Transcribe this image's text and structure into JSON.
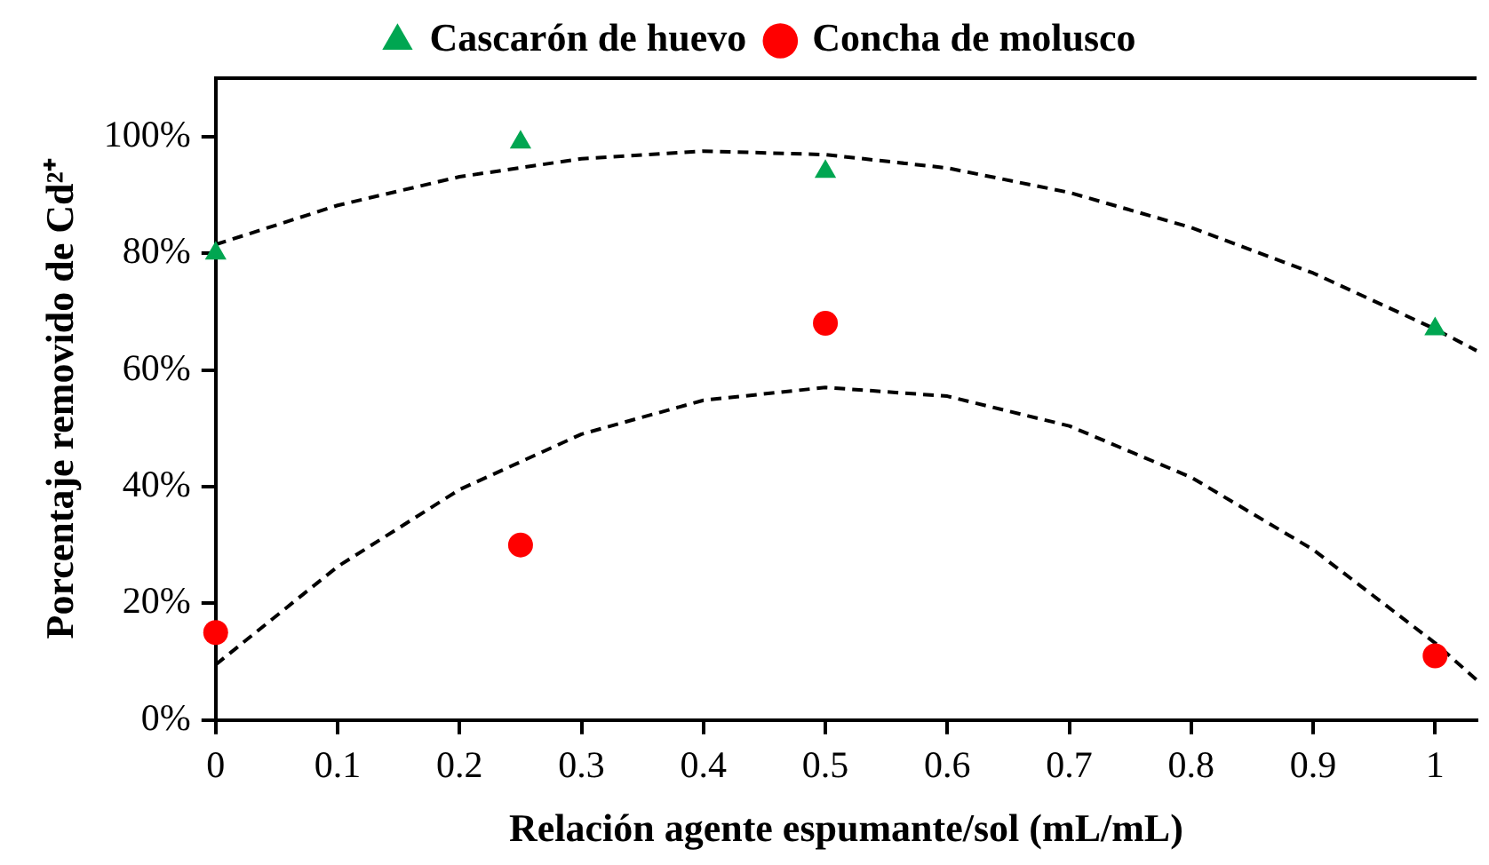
{
  "chart_data": {
    "type": "scatter",
    "xlabel": "Relación agente espumante/sol (mL/mL)",
    "ylabel": "Porcentaje removido de Cd²⁺",
    "xlim": [
      0,
      1.034
    ],
    "xticks": [
      0,
      0.1,
      0.2,
      0.3,
      0.4,
      0.5,
      0.6,
      0.7,
      0.8,
      0.9,
      1
    ],
    "ylim": [
      0,
      110
    ],
    "yticks": [
      {
        "value": 0,
        "label": "0%"
      },
      {
        "value": 20,
        "label": "20%"
      },
      {
        "value": 40,
        "label": "40%"
      },
      {
        "value": 60,
        "label": "60%"
      },
      {
        "value": 80,
        "label": "80%"
      },
      {
        "value": 100,
        "label": "100%"
      }
    ],
    "grid": false,
    "legend": "top",
    "series": [
      {
        "name": "Cascarón de huevo",
        "color": "#00a651",
        "marker": "triangle",
        "x": [
          0,
          0.25,
          0.5,
          1
        ],
        "values": [
          80,
          99,
          94,
          67
        ]
      },
      {
        "name": "Concha de molusco",
        "color": "#ff0000",
        "marker": "circle",
        "x": [
          0,
          0.25,
          0.5,
          1
        ],
        "values": [
          15,
          30,
          68,
          11
        ]
      },
      {
        "type": "line",
        "color": "#000000",
        "line_style": "dashed",
        "marker": "none",
        "x": [
          0,
          0.1,
          0.2,
          0.3,
          0.4,
          0.5,
          0.6,
          0.7,
          0.8,
          0.9,
          1,
          1.034
        ],
        "values": [
          81.5,
          88.2,
          93.1,
          96.2,
          97.5,
          96.9,
          94.6,
          90.4,
          84.4,
          76.6,
          67.0,
          63.3
        ]
      },
      {
        "type": "line",
        "color": "#000000",
        "line_style": "dashed",
        "marker": "none",
        "x": [
          0,
          0.1,
          0.2,
          0.3,
          0.4,
          0.5,
          0.6,
          0.7,
          0.8,
          0.9,
          1,
          1.034
        ],
        "values": [
          9.5,
          26.3,
          39.5,
          49.0,
          54.8,
          57.0,
          55.5,
          50.4,
          41.6,
          29.2,
          13.2,
          6.9
        ]
      }
    ]
  }
}
